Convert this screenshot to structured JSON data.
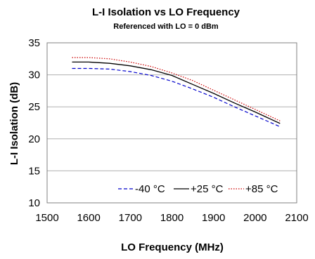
{
  "chart_data": {
    "type": "line",
    "title": "L-I Isolation vs LO Frequency",
    "subtitle": "Referenced with LO = 0 dBm",
    "xlabel": "LO Frequency (MHz)",
    "ylabel": "L-I Isolation (dB)",
    "xlim": [
      1500,
      2100
    ],
    "ylim": [
      10,
      35
    ],
    "xticks": [
      "1500",
      "1600",
      "1700",
      "1800",
      "1900",
      "2000",
      "2100"
    ],
    "yticks": [
      "10",
      "15",
      "20",
      "25",
      "30",
      "35"
    ],
    "grid": "horizontal",
    "legend_position": "bottom-right",
    "series": [
      {
        "name": "-40 °C",
        "color": "#0000cc",
        "dash": "dashed",
        "x": [
          1560,
          1600,
          1650,
          1700,
          1750,
          1800,
          1850,
          1900,
          1950,
          2000,
          2060
        ],
        "y": [
          31.0,
          31.0,
          30.9,
          30.5,
          29.9,
          29.0,
          27.8,
          26.5,
          25.0,
          23.6,
          21.9
        ]
      },
      {
        "name": "+25 °C",
        "color": "#000000",
        "dash": "solid",
        "x": [
          1560,
          1600,
          1650,
          1700,
          1750,
          1800,
          1850,
          1900,
          1950,
          2000,
          2060
        ],
        "y": [
          32.0,
          32.0,
          31.8,
          31.4,
          30.8,
          29.9,
          28.5,
          27.1,
          25.6,
          24.2,
          22.4
        ]
      },
      {
        "name": "+85 °C",
        "color": "#cc0000",
        "dash": "dotted",
        "x": [
          1560,
          1600,
          1650,
          1700,
          1750,
          1800,
          1850,
          1900,
          1950,
          2000,
          2060
        ],
        "y": [
          32.7,
          32.7,
          32.5,
          32.0,
          31.3,
          30.3,
          29.1,
          27.6,
          26.1,
          24.6,
          22.8
        ]
      }
    ]
  }
}
